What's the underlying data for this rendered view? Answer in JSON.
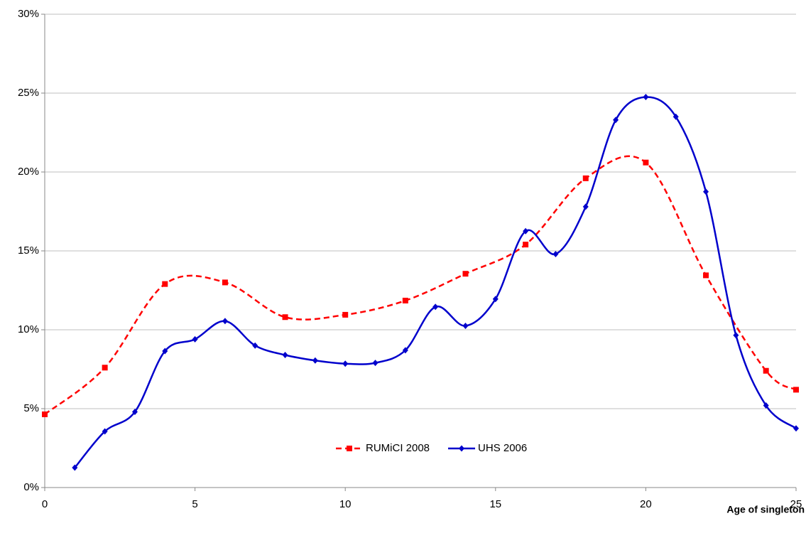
{
  "chart_data": {
    "type": "line",
    "x_label": "Age of singleton",
    "xlim": [
      0,
      25
    ],
    "xticks": [
      0,
      5,
      10,
      15,
      20,
      25
    ],
    "ylim": [
      0,
      30
    ],
    "yticks": [
      {
        "value": 0,
        "label": "0%"
      },
      {
        "value": 5,
        "label": "5%"
      },
      {
        "value": 10,
        "label": "10%"
      },
      {
        "value": 15,
        "label": "15%"
      },
      {
        "value": 20,
        "label": "20%"
      },
      {
        "value": 25,
        "label": "25%"
      },
      {
        "value": 30,
        "label": "30%"
      }
    ],
    "grid": true,
    "legend": "bottom",
    "series": [
      {
        "name": "RUMiCI 2008",
        "color": "#ff0000",
        "dash": true,
        "marker": "square",
        "x": [
          0,
          2,
          4,
          6,
          8,
          10,
          12,
          14,
          16,
          18,
          20,
          22,
          24,
          25
        ],
        "values": [
          4.64,
          7.6,
          12.9,
          13.0,
          10.8,
          10.95,
          11.85,
          13.55,
          15.4,
          19.6,
          20.6,
          13.45,
          7.4,
          6.2
        ]
      },
      {
        "name": "UHS 2006",
        "color": "#0000cc",
        "dash": false,
        "marker": "diamond",
        "x": [
          1,
          2,
          3,
          4,
          5,
          6,
          7,
          8,
          9,
          10,
          11,
          12,
          13,
          14,
          15,
          16,
          17,
          18,
          19,
          20,
          21,
          22,
          23,
          24,
          25
        ],
        "values": [
          1.26,
          3.56,
          4.8,
          8.65,
          9.4,
          10.55,
          9.0,
          8.4,
          8.05,
          7.85,
          7.9,
          8.7,
          11.45,
          10.25,
          11.95,
          16.25,
          14.8,
          17.8,
          23.3,
          24.75,
          23.5,
          18.75,
          9.65,
          5.2,
          3.75
        ]
      }
    ]
  }
}
